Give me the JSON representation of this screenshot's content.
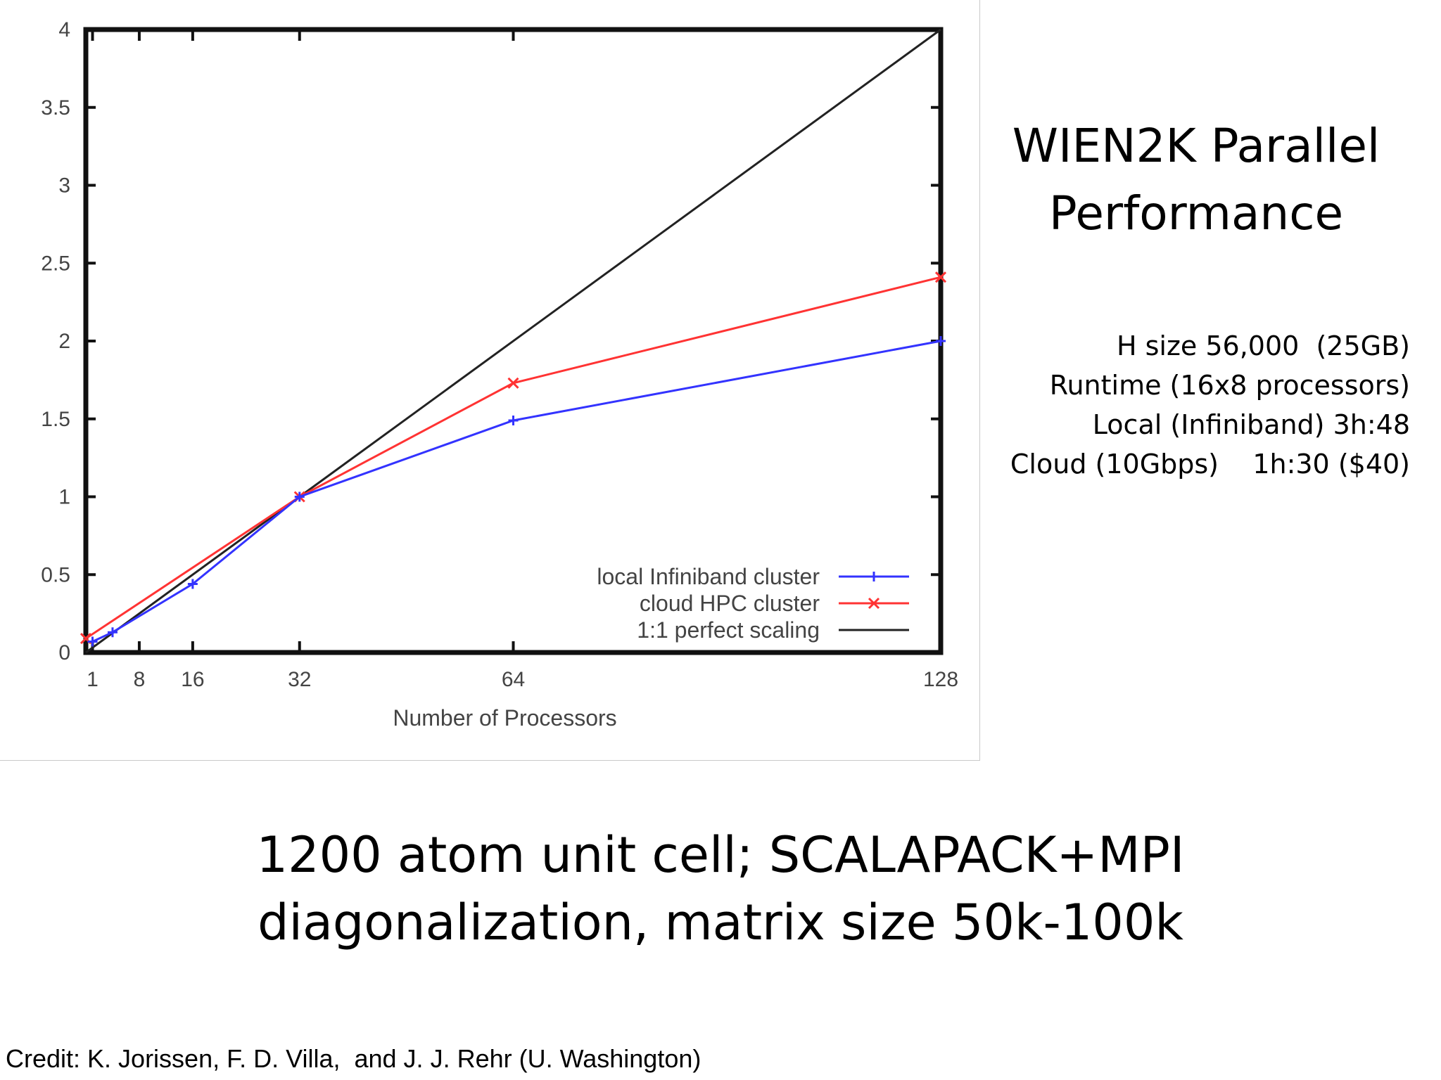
{
  "slide": {
    "title_lines": [
      "WIEN2K Parallel",
      "Performance"
    ],
    "details": [
      "H size 56,000  (25GB)",
      "Runtime (16x8 processors)",
      "Local (Infiniband) 3h:48",
      "Cloud (10Gbps)    1h:30 ($40)"
    ],
    "caption_lines": [
      "1200 atom unit cell; SCALAPACK+MPI",
      "diagonalization, matrix size 50k-100k"
    ],
    "credit": "Credit: K. Jorissen, F. D. Villa,  and J. J. Rehr (U. Washington)"
  },
  "chart_data": {
    "type": "line",
    "title": "",
    "xlabel": "Number of Processors",
    "ylabel": "",
    "xlim": [
      0,
      128
    ],
    "ylim": [
      0,
      4
    ],
    "x_ticks": [
      1,
      8,
      16,
      32,
      64,
      128
    ],
    "y_ticks": [
      0,
      0.5,
      1,
      1.5,
      2,
      2.5,
      3,
      3.5,
      4
    ],
    "y_tick_labels": [
      "0",
      "0.5",
      "1",
      "1.5",
      "2",
      "2.5",
      "3",
      "3.5",
      "4"
    ],
    "grid": false,
    "legend": "bottom-right",
    "series": [
      {
        "name": "local Infiniband cluster",
        "color": "#3333ff",
        "marker": "plus",
        "x": [
          1,
          4,
          16,
          32,
          64,
          128
        ],
        "y": [
          0.07,
          0.13,
          0.44,
          1.0,
          1.49,
          2.0
        ]
      },
      {
        "name": "cloud HPC cluster",
        "color": "#ff3333",
        "marker": "x",
        "x": [
          0,
          32,
          64,
          128
        ],
        "y": [
          0.09,
          1.0,
          1.73,
          2.41
        ]
      },
      {
        "name": "1:1 perfect scaling",
        "color": "#222222",
        "marker": "none",
        "x": [
          0,
          32,
          128
        ],
        "y": [
          0.0,
          1.0,
          4.0
        ]
      }
    ]
  }
}
